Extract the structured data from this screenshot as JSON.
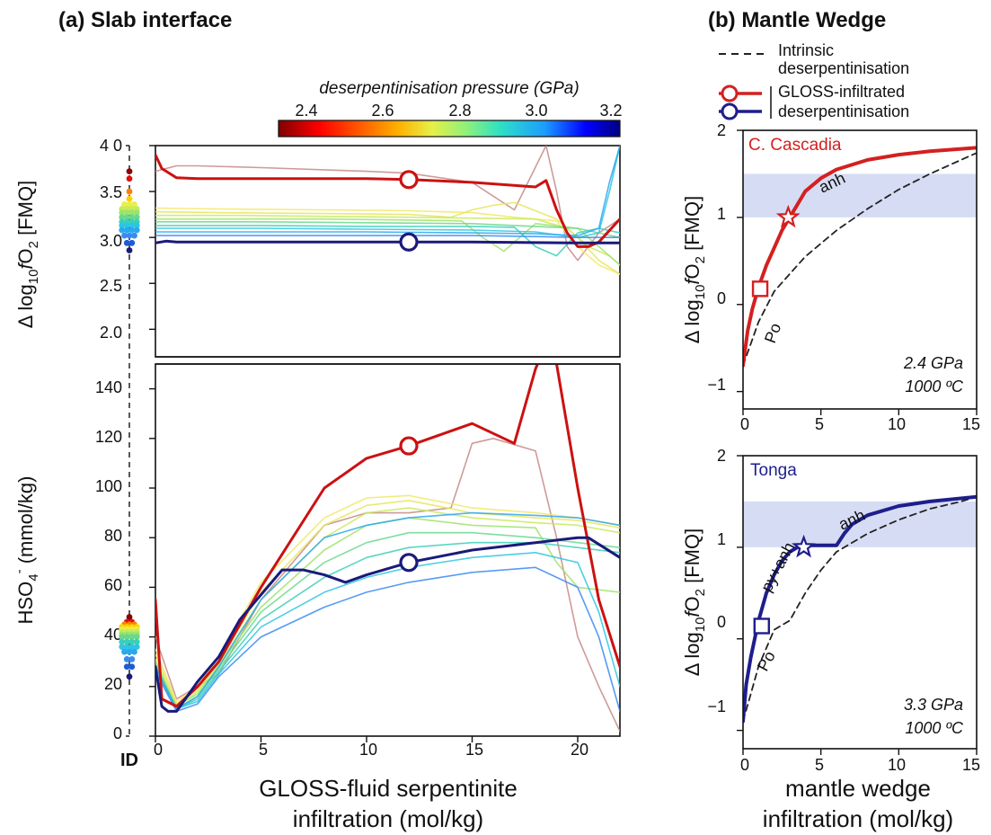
{
  "panel_a": {
    "title": "(a) Slab interface",
    "colorbar_label": "deserpentinisation pressure (GPa)",
    "colorbar_ticks": [
      "2.4",
      "2.6",
      "2.8",
      "3.0",
      "3.2"
    ],
    "id_label": "ID",
    "xlabel_line1": "GLOSS-fluid serpentinite",
    "xlabel_line2": "infiltration (mol/kg)",
    "top_ylabel": "Δ log10fO2 [FMQ]",
    "bottom_ylabel": "HSO4- (mmol/kg)",
    "x_ticks": [
      "0",
      "5",
      "10",
      "15",
      "20"
    ],
    "top_y_ticks": [
      "4 0",
      "3.5",
      "3.0",
      "2.5",
      "2.0"
    ],
    "bottom_y_ticks": [
      "140",
      "120",
      "100",
      "80",
      "60",
      "40",
      "20",
      "0"
    ]
  },
  "panel_b": {
    "title": "(b) Mantle Wedge",
    "legend_dashed_1": "Intrinsic",
    "legend_dashed_2": "deserpentinisation",
    "legend_solid_1": "GLOSS-infiltrated",
    "legend_solid_2": "deserpentinisation",
    "xlabel_line1": "mantle wedge",
    "xlabel_line2": "infiltration (mol/kg)",
    "ylabel": "Δ log10fO2 [FMQ]",
    "x_ticks": [
      "0",
      "5",
      "10",
      "15"
    ],
    "y_ticks": [
      "2",
      "1",
      "0",
      "−1"
    ],
    "top": {
      "name": "C. Cascadia",
      "annot_anh": "anh",
      "annot_po": "Po",
      "cond_p": "2.4 GPa",
      "cond_t": "1000 ºC"
    },
    "bottom": {
      "name": "Tonga",
      "annot_anh": "anh",
      "annot_pyanh": "py+anh",
      "annot_po": "Po",
      "cond_p": "3.3 GPa",
      "cond_t": "1000 ºC"
    }
  },
  "chart_data": [
    {
      "type": "line",
      "panel": "a-top",
      "xlim": [
        0,
        22
      ],
      "ylim": [
        1.7,
        4.0
      ],
      "colorbar_range": [
        2.33,
        3.26
      ],
      "series": [
        {
          "color": "#cc1111",
          "width": 3,
          "x": [
            0,
            0.3,
            1,
            2,
            5,
            10,
            12,
            15,
            18,
            18.5,
            19,
            19.5,
            20,
            20.5,
            21,
            22
          ],
          "y": [
            3.9,
            3.75,
            3.65,
            3.64,
            3.64,
            3.64,
            3.63,
            3.6,
            3.55,
            3.62,
            3.3,
            3.05,
            2.9,
            2.9,
            2.95,
            3.2
          ]
        },
        {
          "color": "#1a1a7a",
          "width": 3,
          "x": [
            0,
            0.5,
            1,
            5,
            10,
            12,
            15,
            20,
            22
          ],
          "y": [
            2.94,
            2.96,
            2.95,
            2.95,
            2.95,
            2.95,
            2.95,
            2.94,
            2.94
          ]
        },
        {
          "color": "#c48a86",
          "width": 1.6,
          "x": [
            0,
            1,
            2,
            5,
            10,
            12,
            15,
            17,
            18.5,
            19,
            19.5,
            20,
            21,
            22
          ],
          "y": [
            3.72,
            3.78,
            3.78,
            3.76,
            3.72,
            3.7,
            3.6,
            3.3,
            4.0,
            3.5,
            2.9,
            2.75,
            3.05,
            3.2
          ]
        },
        {
          "color": "#f2e86a",
          "width": 1.6,
          "x": [
            0,
            3,
            8,
            12,
            15,
            17,
            19,
            20,
            21,
            22
          ],
          "y": [
            3.32,
            3.31,
            3.3,
            3.29,
            3.27,
            3.22,
            3.18,
            2.9,
            2.7,
            2.6
          ]
        },
        {
          "color": "#e5e65a",
          "width": 1.6,
          "x": [
            0,
            3,
            8,
            12,
            14,
            15,
            16,
            17,
            19,
            20,
            21,
            22
          ],
          "y": [
            3.28,
            3.27,
            3.26,
            3.25,
            3.22,
            3.3,
            3.35,
            3.38,
            3.2,
            3.0,
            2.75,
            2.6
          ]
        },
        {
          "color": "#c8ea5c",
          "width": 1.6,
          "x": [
            0,
            4,
            8,
            12,
            15,
            18,
            19.5,
            20.5,
            21.5,
            22
          ],
          "y": [
            3.24,
            3.24,
            3.23,
            3.22,
            3.21,
            3.2,
            3.1,
            2.9,
            2.8,
            2.7
          ]
        },
        {
          "color": "#9ee36a",
          "width": 1.6,
          "x": [
            0,
            4,
            8,
            12,
            14.5,
            15.5,
            16.5,
            18,
            20,
            21,
            22
          ],
          "y": [
            3.2,
            3.2,
            3.2,
            3.19,
            3.18,
            3.0,
            2.85,
            3.15,
            3.1,
            2.9,
            2.7
          ]
        },
        {
          "color": "#6ad88e",
          "width": 1.6,
          "x": [
            0,
            5,
            10,
            15,
            18,
            20,
            21,
            22
          ],
          "y": [
            3.17,
            3.17,
            3.16,
            3.15,
            3.12,
            3.1,
            3.05,
            3.0
          ]
        },
        {
          "color": "#3ccfb8",
          "width": 1.6,
          "x": [
            0,
            5,
            10,
            15,
            17,
            18,
            19,
            20,
            21,
            22
          ],
          "y": [
            3.13,
            3.13,
            3.12,
            3.12,
            3.11,
            2.9,
            2.8,
            3.05,
            3.1,
            3.05
          ]
        },
        {
          "color": "#2ec5e0",
          "width": 1.6,
          "x": [
            0,
            5,
            10,
            15,
            18,
            20,
            21,
            21.5,
            22
          ],
          "y": [
            3.1,
            3.1,
            3.09,
            3.08,
            3.06,
            3.0,
            3.05,
            3.5,
            4.0
          ]
        },
        {
          "color": "#2aa8f0",
          "width": 1.6,
          "x": [
            0,
            5,
            10,
            15,
            18,
            20,
            21,
            21.5,
            22
          ],
          "y": [
            3.06,
            3.06,
            3.06,
            3.05,
            3.04,
            3.02,
            3.1,
            3.6,
            4.0
          ]
        },
        {
          "color": "#3a8af0",
          "width": 1.6,
          "x": [
            0,
            5,
            10,
            15,
            18,
            20,
            21,
            22
          ],
          "y": [
            3.02,
            3.02,
            3.02,
            3.02,
            3.01,
            3.0,
            3.0,
            3.0
          ]
        }
      ],
      "markers": [
        {
          "x": 12,
          "y": 3.63,
          "color": "#cc1111"
        },
        {
          "x": 12,
          "y": 2.95,
          "color": "#1a1a7a"
        }
      ]
    },
    {
      "type": "line",
      "panel": "a-bottom",
      "xlim": [
        0,
        22
      ],
      "ylim": [
        0,
        150
      ],
      "series": [
        {
          "color": "#cc1111",
          "width": 3,
          "x": [
            0,
            0.3,
            1,
            2,
            3,
            5,
            8,
            10,
            12,
            15,
            17,
            18,
            18.6,
            19,
            20,
            21,
            22
          ],
          "y": [
            55,
            15,
            12,
            20,
            30,
            60,
            100,
            112,
            117,
            126,
            118,
            148,
            160,
            150,
            100,
            55,
            28
          ]
        },
        {
          "color": "#1a1a7a",
          "width": 3,
          "x": [
            0,
            0.3,
            0.6,
            1,
            2,
            3,
            4,
            6,
            7,
            8,
            9,
            10,
            12,
            15,
            18,
            20,
            20.5,
            22
          ],
          "y": [
            28,
            12,
            10,
            10,
            22,
            32,
            47,
            67,
            67,
            65,
            62,
            65,
            70,
            75,
            78,
            80,
            80,
            72
          ]
        },
        {
          "color": "#c48a86",
          "width": 1.6,
          "x": [
            0,
            1,
            3,
            5,
            8,
            10,
            12,
            14,
            15,
            16,
            18,
            19,
            20,
            21,
            22
          ],
          "y": [
            40,
            15,
            25,
            55,
            85,
            90,
            90,
            92,
            118,
            120,
            115,
            80,
            40,
            20,
            2
          ]
        },
        {
          "color": "#f2e86a",
          "width": 1.6,
          "x": [
            0,
            1,
            2,
            3,
            5,
            8,
            10,
            12,
            15,
            18,
            20,
            22
          ],
          "y": [
            35,
            14,
            20,
            32,
            62,
            88,
            96,
            97,
            92,
            90,
            88,
            85
          ]
        },
        {
          "color": "#e5e65a",
          "width": 1.6,
          "x": [
            0,
            1,
            2,
            3,
            5,
            8,
            10,
            12,
            15,
            18,
            20,
            22
          ],
          "y": [
            33,
            13,
            19,
            30,
            58,
            85,
            93,
            95,
            90,
            88,
            87,
            84
          ]
        },
        {
          "color": "#c8ea5c",
          "width": 1.6,
          "x": [
            0,
            1,
            2,
            3,
            5,
            8,
            10,
            12,
            15,
            18,
            20,
            22
          ],
          "y": [
            31,
            12,
            18,
            29,
            55,
            80,
            90,
            92,
            88,
            86,
            85,
            82
          ]
        },
        {
          "color": "#9ee36a",
          "width": 1.6,
          "x": [
            0,
            1,
            2,
            3,
            5,
            8,
            10,
            12,
            15,
            18,
            19,
            20,
            22
          ],
          "y": [
            30,
            12,
            17,
            28,
            52,
            75,
            85,
            88,
            85,
            84,
            70,
            60,
            58
          ]
        },
        {
          "color": "#6ad88e",
          "width": 1.6,
          "x": [
            0,
            1,
            2,
            3,
            5,
            8,
            10,
            12,
            15,
            18,
            20,
            22
          ],
          "y": [
            29,
            11,
            16,
            27,
            50,
            70,
            78,
            82,
            82,
            80,
            78,
            76
          ]
        },
        {
          "color": "#3ccfb8",
          "width": 1.6,
          "x": [
            0,
            1,
            2,
            3,
            5,
            8,
            10,
            12,
            15,
            18,
            20,
            22
          ],
          "y": [
            28,
            11,
            15,
            26,
            47,
            64,
            72,
            76,
            78,
            78,
            76,
            74
          ]
        },
        {
          "color": "#2ec5e0",
          "width": 1.6,
          "x": [
            0,
            1,
            2,
            3,
            5,
            8,
            10,
            12,
            15,
            18,
            20,
            21,
            22
          ],
          "y": [
            27,
            11,
            14,
            25,
            44,
            58,
            64,
            68,
            72,
            74,
            70,
            50,
            20
          ]
        },
        {
          "color": "#2aa8f0",
          "width": 1.6,
          "x": [
            0,
            1,
            2,
            3,
            5,
            8,
            10,
            12,
            15,
            18,
            20,
            22
          ],
          "y": [
            28,
            11,
            16,
            28,
            55,
            80,
            85,
            88,
            90,
            89,
            88,
            85
          ]
        },
        {
          "color": "#3a8af0",
          "width": 1.6,
          "x": [
            0,
            1,
            2,
            3,
            5,
            8,
            10,
            12,
            15,
            18,
            20,
            21,
            22
          ],
          "y": [
            26,
            10,
            13,
            24,
            40,
            52,
            58,
            62,
            66,
            68,
            60,
            40,
            10
          ]
        }
      ],
      "markers": [
        {
          "x": 12,
          "y": 117,
          "color": "#cc1111"
        },
        {
          "x": 12,
          "y": 70,
          "color": "#1a1a7a"
        }
      ]
    },
    {
      "type": "line",
      "panel": "b-top",
      "xlim": [
        0,
        15
      ],
      "ylim": [
        -1.2,
        2.0
      ],
      "band": [
        1.0,
        1.5
      ],
      "series": [
        {
          "style": "solid",
          "color": "#d42020",
          "x": [
            0,
            0.3,
            0.6,
            1,
            1.5,
            2,
            2.5,
            3,
            3.5,
            4,
            5,
            6,
            8,
            10,
            12,
            15
          ],
          "y": [
            -0.7,
            -0.3,
            -0.05,
            0.2,
            0.45,
            0.65,
            0.85,
            1.0,
            1.15,
            1.3,
            1.45,
            1.55,
            1.66,
            1.72,
            1.76,
            1.8
          ]
        },
        {
          "style": "dashed",
          "color": "#222222",
          "x": [
            0,
            0.5,
            1,
            2,
            3,
            4,
            5,
            6,
            8,
            10,
            12,
            14,
            15
          ],
          "y": [
            -0.7,
            -0.45,
            -0.2,
            0.15,
            0.35,
            0.55,
            0.7,
            0.85,
            1.1,
            1.32,
            1.5,
            1.66,
            1.74
          ]
        }
      ],
      "markers": [
        {
          "shape": "square",
          "x": 1.1,
          "y": 0.18
        },
        {
          "shape": "star",
          "x": 2.9,
          "y": 1.0
        }
      ]
    },
    {
      "type": "line",
      "panel": "b-bottom",
      "xlim": [
        0,
        15
      ],
      "ylim": [
        -1.2,
        2.0
      ],
      "band": [
        1.0,
        1.5
      ],
      "series": [
        {
          "style": "solid",
          "color": "#1e1e8c",
          "x": [
            0,
            0.2,
            0.5,
            1,
            1.5,
            2,
            2.5,
            3,
            3.5,
            4,
            5,
            6,
            6.5,
            7,
            8,
            10,
            12,
            15
          ],
          "y": [
            -0.9,
            -0.5,
            -0.2,
            0.2,
            0.5,
            0.7,
            0.85,
            0.95,
            1.0,
            1.02,
            1.02,
            1.02,
            1.15,
            1.25,
            1.35,
            1.45,
            1.5,
            1.55
          ]
        },
        {
          "style": "dashed",
          "color": "#222222",
          "x": [
            0,
            0.5,
            1,
            2,
            3,
            4,
            5,
            6,
            8,
            10,
            12,
            14,
            15
          ],
          "y": [
            -0.9,
            -0.6,
            -0.3,
            0.1,
            0.2,
            0.5,
            0.75,
            0.95,
            1.15,
            1.3,
            1.42,
            1.5,
            1.55
          ]
        }
      ],
      "markers": [
        {
          "shape": "square",
          "x": 1.2,
          "y": 0.14
        },
        {
          "shape": "star",
          "x": 3.9,
          "y": 1.0
        }
      ]
    }
  ]
}
